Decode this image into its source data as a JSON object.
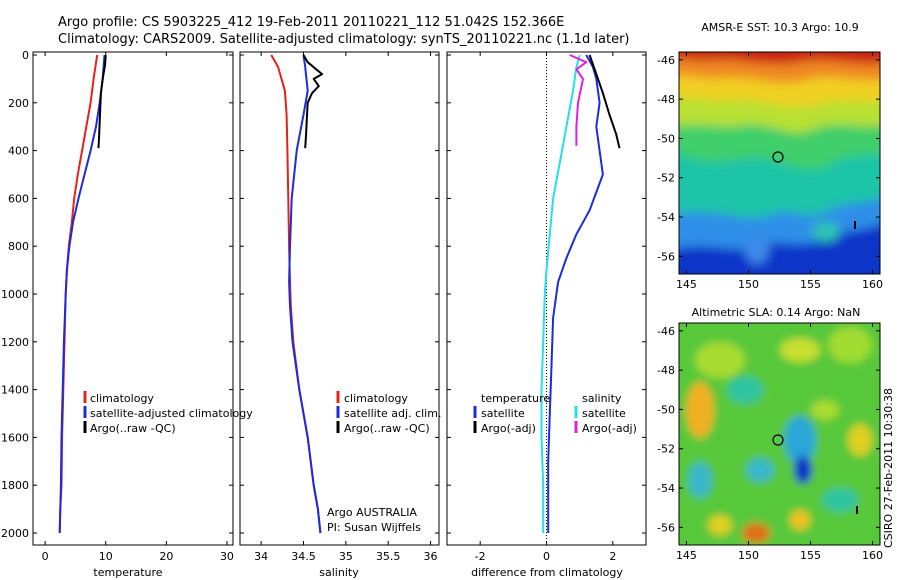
{
  "header": {
    "line1": "Argo profile: CS 5903225_412 19-Feb-2011 20110221_112 51.042S 152.366E",
    "line2": "Climatology: CARS2009. Satellite-adjusted climatology: synTS_20110221.nc (1.1d later)"
  },
  "colors": {
    "climatology": "#e8201c",
    "satellite": "#1a2be0",
    "argo": "#000000",
    "cyan": "#22e0e8",
    "magenta": "#e020e0"
  },
  "chart_data": [
    {
      "type": "line",
      "panel": "temperature",
      "xlabel": "temperature",
      "xlim": [
        -2,
        31
      ],
      "ylim": [
        2050,
        0
      ],
      "xticks": [
        "0",
        "10",
        "20",
        "30"
      ],
      "yticks": [
        "0",
        "200",
        "400",
        "600",
        "800",
        "1000",
        "1200",
        "1400",
        "1600",
        "1800",
        "2000"
      ],
      "legend": {
        "placement": "bottom-left",
        "entries": [
          "climatology",
          "satellite-adjusted climatology",
          "Argo(..raw -QC)"
        ]
      },
      "series": [
        {
          "name": "climatology",
          "x": [
            8.6,
            8.0,
            7.5,
            6.8,
            6.1,
            5.4,
            4.8,
            4.4,
            3.9,
            3.6,
            3.4,
            3.2,
            3.0,
            2.8,
            2.7,
            2.5,
            2.4
          ],
          "y": [
            0,
            100,
            200,
            300,
            400,
            500,
            600,
            700,
            800,
            900,
            1000,
            1200,
            1400,
            1600,
            1800,
            1900,
            2000
          ]
        },
        {
          "name": "satellite-adjusted climatology",
          "x": [
            9.8,
            9.5,
            9.0,
            8.4,
            7.5,
            6.5,
            5.5,
            4.6,
            4.0,
            3.6,
            3.4,
            3.1,
            2.9,
            2.7,
            2.6,
            2.5,
            2.4
          ],
          "y": [
            0,
            100,
            200,
            300,
            400,
            500,
            600,
            700,
            800,
            900,
            1000,
            1200,
            1400,
            1600,
            1800,
            1900,
            2000
          ]
        },
        {
          "name": "Argo(..raw -QC)",
          "x": [
            10.0,
            9.9,
            9.5,
            9.2,
            9.1,
            9.0,
            8.9,
            8.8
          ],
          "y": [
            0,
            40,
            100,
            160,
            220,
            280,
            340,
            390
          ]
        }
      ]
    },
    {
      "type": "line",
      "panel": "salinity",
      "xlabel": "salinity",
      "xlim": [
        33.75,
        36.1
      ],
      "ylim": [
        2050,
        0
      ],
      "xticks": [
        "34",
        "34.5",
        "35",
        "35.5",
        "36"
      ],
      "legend": {
        "placement": "bottom-left",
        "entries": [
          "climatology",
          "satellite adj. clim.",
          "Argo(..raw -QC)"
        ]
      },
      "annotation": [
        "Argo AUSTRALIA",
        "PI: Susan Wijffels"
      ],
      "series": [
        {
          "name": "climatology",
          "x": [
            34.12,
            34.2,
            34.28,
            34.3,
            34.31,
            34.32,
            34.33,
            34.34,
            34.35,
            34.38,
            34.45,
            34.55,
            34.62,
            34.67,
            34.7
          ],
          "y": [
            0,
            50,
            150,
            250,
            400,
            600,
            800,
            950,
            1050,
            1200,
            1400,
            1600,
            1800,
            1900,
            2000
          ]
        },
        {
          "name": "satellite adj. clim.",
          "x": [
            34.5,
            34.52,
            34.55,
            34.5,
            34.42,
            34.36,
            34.34,
            34.33,
            34.34,
            34.37,
            34.45,
            34.55,
            34.62,
            34.67,
            34.7
          ],
          "y": [
            0,
            50,
            150,
            250,
            400,
            600,
            800,
            950,
            1050,
            1200,
            1400,
            1600,
            1800,
            1900,
            2000
          ]
        },
        {
          "name": "Argo(..raw -QC)",
          "x": [
            34.5,
            34.55,
            34.65,
            34.72,
            34.62,
            34.68,
            34.6,
            34.55,
            34.54,
            34.53,
            34.52
          ],
          "y": [
            0,
            30,
            60,
            80,
            100,
            130,
            160,
            200,
            260,
            330,
            390
          ]
        }
      ]
    },
    {
      "type": "line",
      "panel": "difference",
      "xlabel": "difference from climatology",
      "xlim": [
        -3,
        3
      ],
      "ylim": [
        2050,
        0
      ],
      "xticks": [
        "-2",
        "0",
        "2"
      ],
      "legend": {
        "placement": "bottom-left",
        "temperature": "temperature",
        "salinity": "salinity",
        "entries_left": [
          "satellite",
          "Argo(-adj)"
        ],
        "entries_right": [
          "satellite",
          "Argo(-adj)"
        ]
      },
      "series": [
        {
          "name": "temperature satellite",
          "x": [
            1.2,
            1.4,
            1.5,
            1.6,
            1.5,
            1.6,
            1.7,
            1.3,
            0.9,
            0.6,
            0.35,
            0.2,
            0.15,
            0.1,
            0.05,
            0.05,
            0.05
          ],
          "y": [
            0,
            50,
            100,
            200,
            300,
            400,
            500,
            650,
            750,
            850,
            950,
            1100,
            1300,
            1500,
            1700,
            1900,
            2000
          ]
        },
        {
          "name": "temperature Argo(-adj)",
          "x": [
            1.3,
            1.5,
            1.7,
            1.9,
            2.1,
            2.2
          ],
          "y": [
            0,
            80,
            160,
            250,
            330,
            390
          ]
        },
        {
          "name": "salinity satellite",
          "x": [
            1.0,
            0.9,
            0.8,
            0.6,
            0.4,
            0.2,
            0.1,
            0.0,
            -0.05,
            -0.1,
            -0.15,
            -0.15,
            -0.1,
            -0.1
          ],
          "y": [
            0,
            50,
            150,
            300,
            450,
            600,
            750,
            900,
            1000,
            1200,
            1400,
            1600,
            1800,
            2000
          ]
        },
        {
          "name": "salinity Argo(-adj)",
          "x": [
            0.7,
            1.2,
            0.9,
            1.1,
            0.95,
            0.9,
            0.9
          ],
          "y": [
            0,
            30,
            60,
            100,
            200,
            300,
            380
          ]
        }
      ]
    }
  ],
  "maps": {
    "sst": {
      "title": "AMSR-E SST: 10.3 Argo: 10.9",
      "yticks": [
        "-46",
        "-48",
        "-50",
        "-52",
        "-54",
        "-56"
      ],
      "xticks": [
        "145",
        "150",
        "155",
        "160"
      ]
    },
    "sla": {
      "title": "Altimetric SLA: 0.14 Argo: NaN",
      "yticks": [
        "-46",
        "-48",
        "-50",
        "-52",
        "-54",
        "-56"
      ],
      "xticks": [
        "145",
        "150",
        "155",
        "160"
      ]
    }
  },
  "side_label": "CSIRO 27-Feb-2011 10:30:38"
}
